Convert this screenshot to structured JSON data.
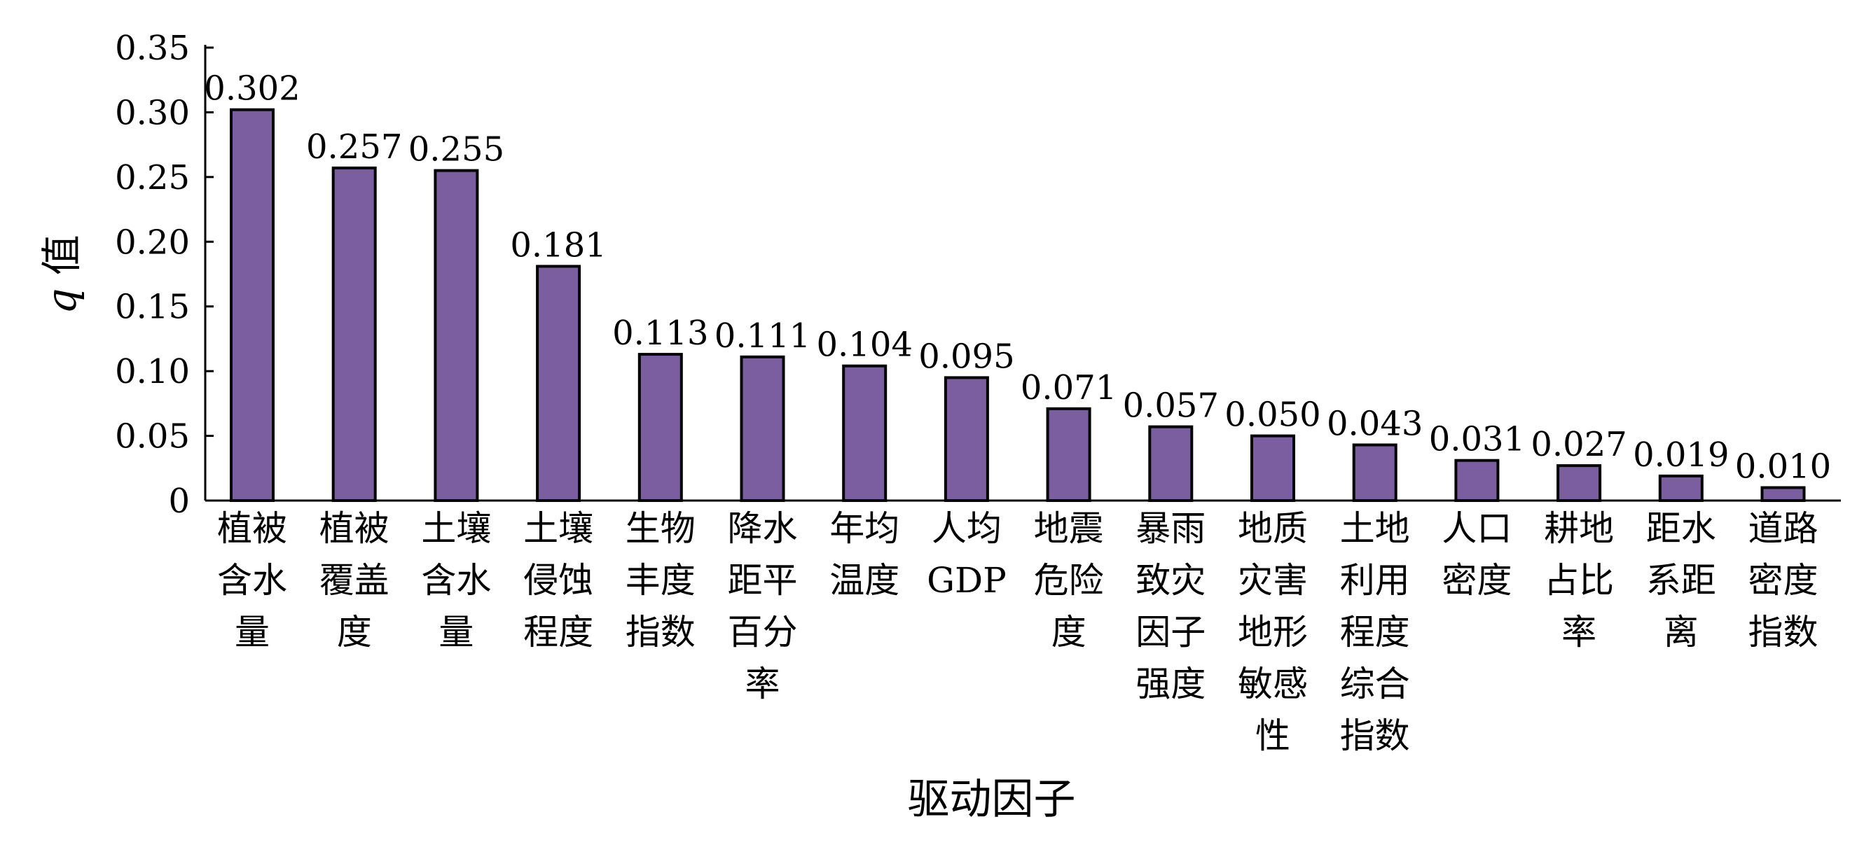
{
  "chart_data": {
    "type": "bar",
    "title": "",
    "xlabel": "驱动因子",
    "ylabel": "q 值",
    "ylabel_parts": {
      "italic": "q",
      "rest": "值"
    },
    "ylim": [
      0,
      0.35
    ],
    "yticks": [
      0,
      0.05,
      0.1,
      0.15,
      0.2,
      0.25,
      0.3,
      0.35
    ],
    "ytick_labels": [
      "0",
      "0.05",
      "0.10",
      "0.15",
      "0.20",
      "0.25",
      "0.30",
      "0.35"
    ],
    "grid": false,
    "legend": "none",
    "bar_color": "#7B5EA0",
    "bar_edge_color": "#000000",
    "categories": [
      [
        "植被",
        "含水",
        "量"
      ],
      [
        "植被",
        "覆盖",
        "度"
      ],
      [
        "土壤",
        "含水",
        "量"
      ],
      [
        "土壤",
        "侵蚀",
        "程度"
      ],
      [
        "生物",
        "丰度",
        "指数"
      ],
      [
        "降水",
        "距平",
        "百分",
        "率"
      ],
      [
        "年均",
        "温度"
      ],
      [
        "人均",
        "GDP"
      ],
      [
        "地震",
        "危险",
        "度"
      ],
      [
        "暴雨",
        "致灾",
        "因子",
        "强度"
      ],
      [
        "地质",
        "灾害",
        "地形",
        "敏感",
        "性"
      ],
      [
        "土地",
        "利用",
        "程度",
        "综合",
        "指数"
      ],
      [
        "人口",
        "密度"
      ],
      [
        "耕地",
        "占比",
        "率"
      ],
      [
        "距水",
        "系距",
        "离"
      ],
      [
        "道路",
        "密度",
        "指数"
      ]
    ],
    "values": [
      0.302,
      0.257,
      0.255,
      0.181,
      0.113,
      0.111,
      0.104,
      0.095,
      0.071,
      0.057,
      0.05,
      0.043,
      0.031,
      0.027,
      0.019,
      0.01
    ],
    "value_labels": [
      "0.302",
      "0.257",
      "0.255",
      "0.181",
      "0.113",
      "0.111",
      "0.104",
      "0.095",
      "0.071",
      "0.057",
      "0.050",
      "0.043",
      "0.031",
      "0.027",
      "0.019",
      "0.010"
    ]
  }
}
